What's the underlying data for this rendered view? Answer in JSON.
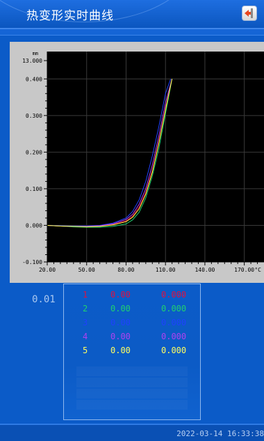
{
  "header": {
    "title": "热变形实时曲线",
    "back_icon": "exit-arrow-icon"
  },
  "chart_data": {
    "type": "line",
    "ylabel": "mm",
    "xunit": "°C",
    "y_top_label": "13.000",
    "yticks": [
      "0.400",
      "0.300",
      "0.200",
      "0.100",
      "0.000",
      "-0.100"
    ],
    "ytick_values": [
      0.4,
      0.3,
      0.2,
      0.1,
      0.0,
      -0.1
    ],
    "xticks": [
      "20.00",
      "50.00",
      "80.00",
      "110.00",
      "140.00",
      "170.00"
    ],
    "xtick_values": [
      20,
      50,
      80,
      110,
      140,
      170
    ],
    "xlim": [
      20,
      185
    ],
    "ylim": [
      -0.1,
      0.45
    ],
    "grid": true,
    "series": [
      {
        "color": "#e01040",
        "x": [
          20,
          30,
          40,
          50,
          60,
          70,
          80,
          85,
          90,
          95,
          100,
          105,
          110,
          115
        ],
        "y": [
          0.0,
          -0.002,
          -0.003,
          -0.003,
          -0.002,
          0.002,
          0.012,
          0.025,
          0.05,
          0.09,
          0.15,
          0.23,
          0.32,
          0.4
        ]
      },
      {
        "color": "#20d070",
        "x": [
          20,
          30,
          40,
          50,
          60,
          70,
          80,
          85,
          90,
          95,
          100,
          105,
          110,
          115
        ],
        "y": [
          0.0,
          -0.002,
          -0.004,
          -0.005,
          -0.005,
          -0.003,
          0.004,
          0.015,
          0.036,
          0.075,
          0.135,
          0.21,
          0.305,
          0.4
        ]
      },
      {
        "color": "#2040ff",
        "x": [
          20,
          30,
          40,
          50,
          60,
          70,
          80,
          85,
          90,
          95,
          100,
          105,
          110,
          114
        ],
        "y": [
          0.0,
          -0.001,
          -0.002,
          -0.002,
          0.0,
          0.006,
          0.02,
          0.038,
          0.07,
          0.12,
          0.19,
          0.27,
          0.36,
          0.4
        ]
      },
      {
        "color": "#b040f0",
        "x": [
          20,
          30,
          40,
          50,
          60,
          70,
          80,
          85,
          90,
          95,
          100,
          105,
          110,
          115
        ],
        "y": [
          0.0,
          -0.002,
          -0.003,
          -0.003,
          -0.001,
          0.004,
          0.016,
          0.03,
          0.058,
          0.1,
          0.165,
          0.245,
          0.335,
          0.4
        ]
      },
      {
        "color": "#ffff40",
        "x": [
          20,
          30,
          40,
          50,
          60,
          70,
          80,
          85,
          90,
          95,
          100,
          105,
          110,
          115
        ],
        "y": [
          0.0,
          -0.002,
          -0.003,
          -0.004,
          -0.003,
          0.001,
          0.01,
          0.022,
          0.045,
          0.085,
          0.145,
          0.225,
          0.315,
          0.4
        ]
      }
    ]
  },
  "readout": {
    "scale_value": "0.01",
    "rows": [
      {
        "index": "1",
        "value": "0.00",
        "deform": "0.000",
        "color": "#e01040"
      },
      {
        "index": "2",
        "value": "0.00",
        "deform": "0.000",
        "color": "#20d070"
      },
      {
        "index": "3",
        "value": "0.00",
        "deform": "0.000",
        "color": "#2040ff"
      },
      {
        "index": "4",
        "value": "0.00",
        "deform": "0.000",
        "color": "#b040f0"
      },
      {
        "index": "5",
        "value": "0.00",
        "deform": "0.000",
        "color": "#ffff60"
      }
    ]
  },
  "footer": {
    "timestamp": "2022-03-14 16:33:38"
  }
}
